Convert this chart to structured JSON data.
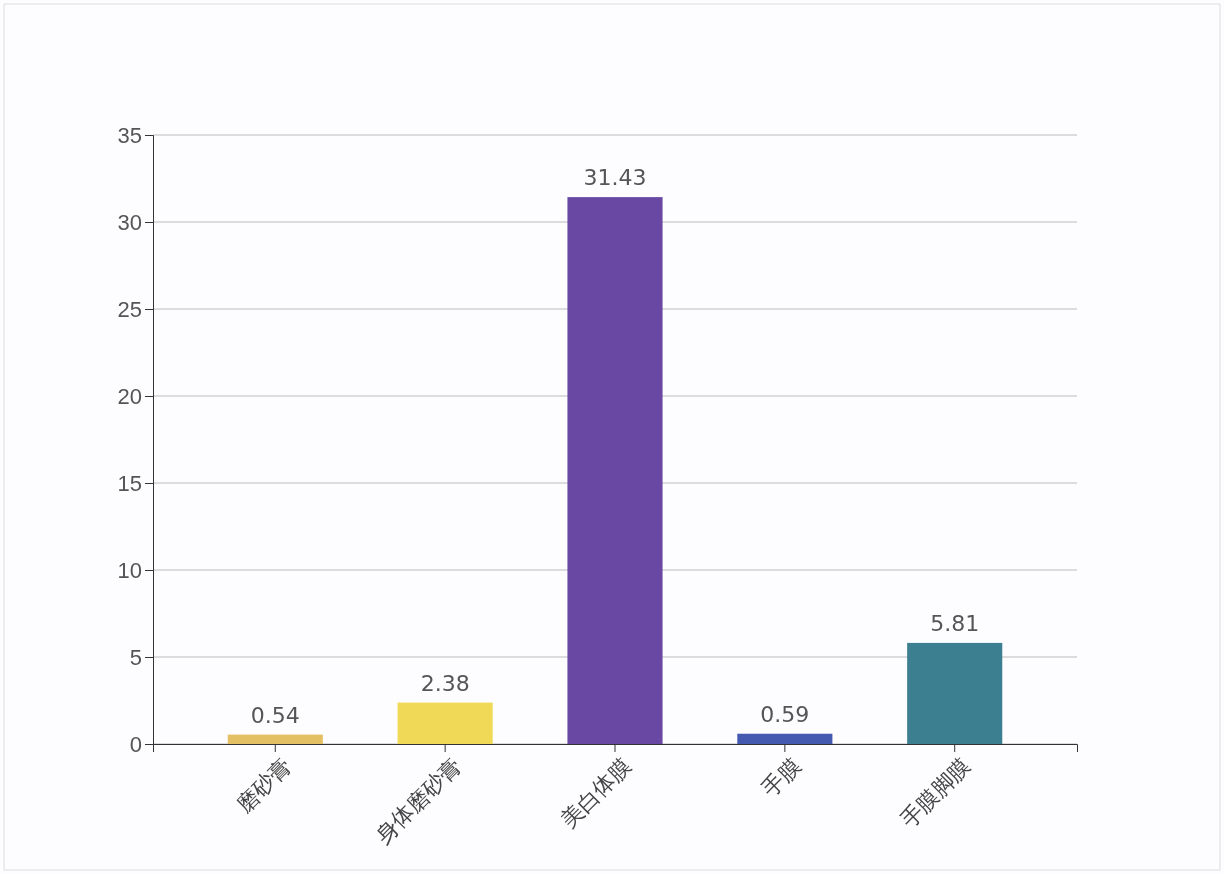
{
  "chart_data": {
    "type": "bar",
    "categories": [
      "磨砂膏",
      "身体磨砂膏",
      "美白体膜",
      "手膜",
      "手膜脚膜"
    ],
    "values": [
      0.54,
      2.38,
      31.43,
      0.59,
      5.81
    ],
    "colors": [
      "#e2c063",
      "#f0d956",
      "#6848a2",
      "#4459b0",
      "#3c7f90"
    ],
    "ylim": [
      0,
      35
    ],
    "yticks": [
      0,
      5,
      10,
      15,
      20,
      25,
      30,
      35
    ],
    "grid": "y",
    "data_labels": true
  }
}
